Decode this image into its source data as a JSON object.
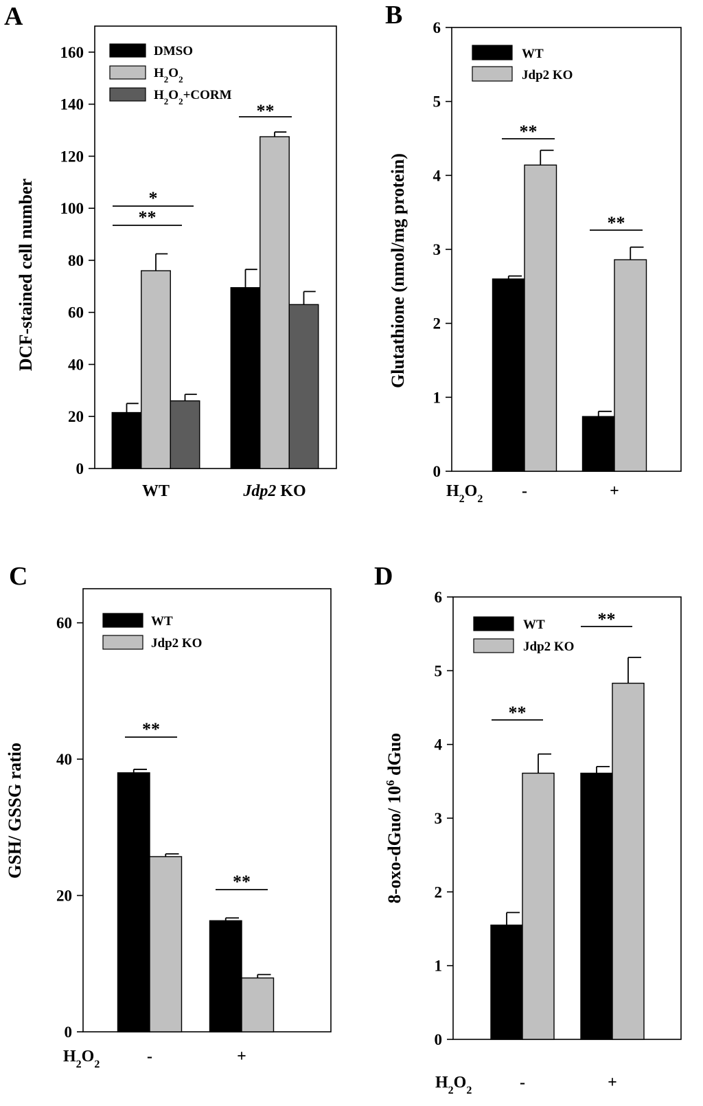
{
  "chart_data": [
    {
      "panel": "A",
      "type": "bar",
      "ylabel": "DCF-stained cell number",
      "ylim": [
        0,
        170
      ],
      "yticks": [
        0,
        20,
        40,
        60,
        80,
        100,
        120,
        140,
        160
      ],
      "categories": [
        "WT",
        "Jdp2 KO"
      ],
      "series": [
        {
          "name": "DMSO",
          "label_main": "DMSO",
          "values": [
            21.5,
            69.5
          ],
          "errors": [
            3.5,
            7
          ],
          "color": "#000000"
        },
        {
          "name": "H2O2",
          "label_main": "H",
          "label_sub1": "2",
          "label_mid": "O",
          "label_sub2": "2",
          "values": [
            76,
            127.5
          ],
          "errors": [
            6.5,
            1.8
          ],
          "color": "#c0c0c0"
        },
        {
          "name": "H2O2+CORM",
          "label_main": "H",
          "label_sub1": "2",
          "label_mid": "O",
          "label_sub2": "2",
          "label_tail": "+CORM",
          "values": [
            26,
            63
          ],
          "errors": [
            2.5,
            5
          ],
          "color": "#5c5c5c"
        }
      ],
      "annotations": [
        "*",
        "**",
        "**"
      ]
    },
    {
      "panel": "B",
      "type": "bar",
      "ylabel": "Glutathione (nmol/mg protein)",
      "ylim": [
        0,
        6
      ],
      "yticks": [
        0,
        1,
        2,
        3,
        4,
        5,
        6
      ],
      "xprefix": "H",
      "xprefix_sub": "2",
      "xprefix_mid": "O",
      "xprefix_sub2": "2",
      "categories": [
        "-",
        "+"
      ],
      "series": [
        {
          "name": "WT",
          "values": [
            2.6,
            0.74
          ],
          "errors": [
            0.04,
            0.07
          ],
          "color": "#000000"
        },
        {
          "name": "Jdp2 KO",
          "values": [
            4.14,
            2.86
          ],
          "errors": [
            0.2,
            0.17
          ],
          "color": "#c0c0c0"
        }
      ],
      "annotations": [
        "**",
        "**"
      ]
    },
    {
      "panel": "C",
      "type": "bar",
      "ylabel": "GSH/ GSSG ratio",
      "ylim": [
        0,
        65
      ],
      "yticks": [
        0,
        20,
        40,
        60
      ],
      "xprefix": "H",
      "xprefix_sub": "2",
      "xprefix_mid": "O",
      "xprefix_sub2": "2",
      "categories": [
        "-",
        "+"
      ],
      "series": [
        {
          "name": "WT",
          "values": [
            38,
            16.3
          ],
          "errors": [
            0.5,
            0.4
          ],
          "color": "#000000"
        },
        {
          "name": "Jdp2 KO",
          "values": [
            25.7,
            7.9
          ],
          "errors": [
            0.4,
            0.5
          ],
          "color": "#c0c0c0"
        }
      ],
      "annotations": [
        "**",
        "**"
      ]
    },
    {
      "panel": "D",
      "type": "bar",
      "ylabel_main": "8-oxo-dGuo/ 10",
      "ylabel_sup": "6",
      "ylabel_tail": " dGuo",
      "ylim": [
        0,
        6
      ],
      "yticks": [
        0,
        1,
        2,
        3,
        4,
        5,
        6
      ],
      "xprefix": "H",
      "xprefix_sub": "2",
      "xprefix_mid": "O",
      "xprefix_sub2": "2",
      "categories": [
        "-",
        "+"
      ],
      "series": [
        {
          "name": "WT",
          "values": [
            1.55,
            3.61
          ],
          "errors": [
            0.17,
            0.09
          ],
          "color": "#000000"
        },
        {
          "name": "Jdp2 KO",
          "values": [
            3.61,
            4.83
          ],
          "errors": [
            0.26,
            0.35
          ],
          "color": "#c0c0c0"
        }
      ],
      "annotations": [
        "**",
        "**"
      ]
    }
  ]
}
